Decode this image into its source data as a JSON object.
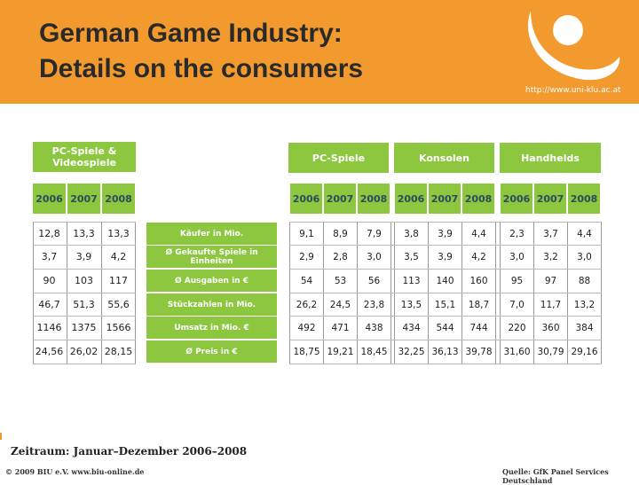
{
  "header": {
    "title_line1": "German Game Industry:",
    "title_line2": "Details on the consumers",
    "url": "http://www.uni-klu.ac.at",
    "logo": "university-logo"
  },
  "left_table": {
    "header": "PC-Spiele & Videospiele",
    "years": [
      "2006",
      "2007",
      "2008"
    ],
    "rows": [
      [
        "12,8",
        "13,3",
        "13,3"
      ],
      [
        "3,7",
        "3,9",
        "4,2"
      ],
      [
        "90",
        "103",
        "117"
      ],
      [
        "46,7",
        "51,3",
        "55,6"
      ],
      [
        "1146",
        "1375",
        "1566"
      ],
      [
        "24,56",
        "26,02",
        "28,15"
      ]
    ]
  },
  "row_labels": [
    "Käufer in Mio.",
    "Ø Gekaufte Spiele in Einheiten",
    "Ø Ausgaben in €",
    "Stückzahlen in Mio.",
    "Umsatz in Mio. €",
    "Ø Preis in €"
  ],
  "right_table": {
    "groups": [
      "PC-Spiele",
      "Konsolen",
      "Handhelds"
    ],
    "years": [
      "2006",
      "2007",
      "2008",
      "2006",
      "2007",
      "2008",
      "2006",
      "2007",
      "2008"
    ],
    "rows": [
      [
        "9,1",
        "8,9",
        "7,9",
        "3,8",
        "3,9",
        "4,4",
        "2,3",
        "3,7",
        "4,4"
      ],
      [
        "2,9",
        "2,8",
        "3,0",
        "3,5",
        "3,9",
        "4,2",
        "3,0",
        "3,2",
        "3,0"
      ],
      [
        "54",
        "53",
        "56",
        "113",
        "140",
        "160",
        "95",
        "97",
        "88"
      ],
      [
        "26,2",
        "24,5",
        "23,8",
        "13,5",
        "15,1",
        "18,7",
        "7,0",
        "11,7",
        "13,2"
      ],
      [
        "492",
        "471",
        "438",
        "434",
        "544",
        "744",
        "220",
        "360",
        "384"
      ],
      [
        "18,75",
        "19,21",
        "18,45",
        "32,25",
        "36,13",
        "39,78",
        "31,60",
        "30,79",
        "29,16"
      ]
    ]
  },
  "footer": {
    "period": "Zeitraum: Januar–Dezember 2006–2008",
    "copyright": "© 2009 BIU e.V. www.biu-online.de",
    "source": "Quelle: GfK Panel Services Deutschland"
  },
  "colors": {
    "header_bg": "#f39a2e",
    "green": "#8dc63f",
    "year_text": "#2e4a5c"
  }
}
